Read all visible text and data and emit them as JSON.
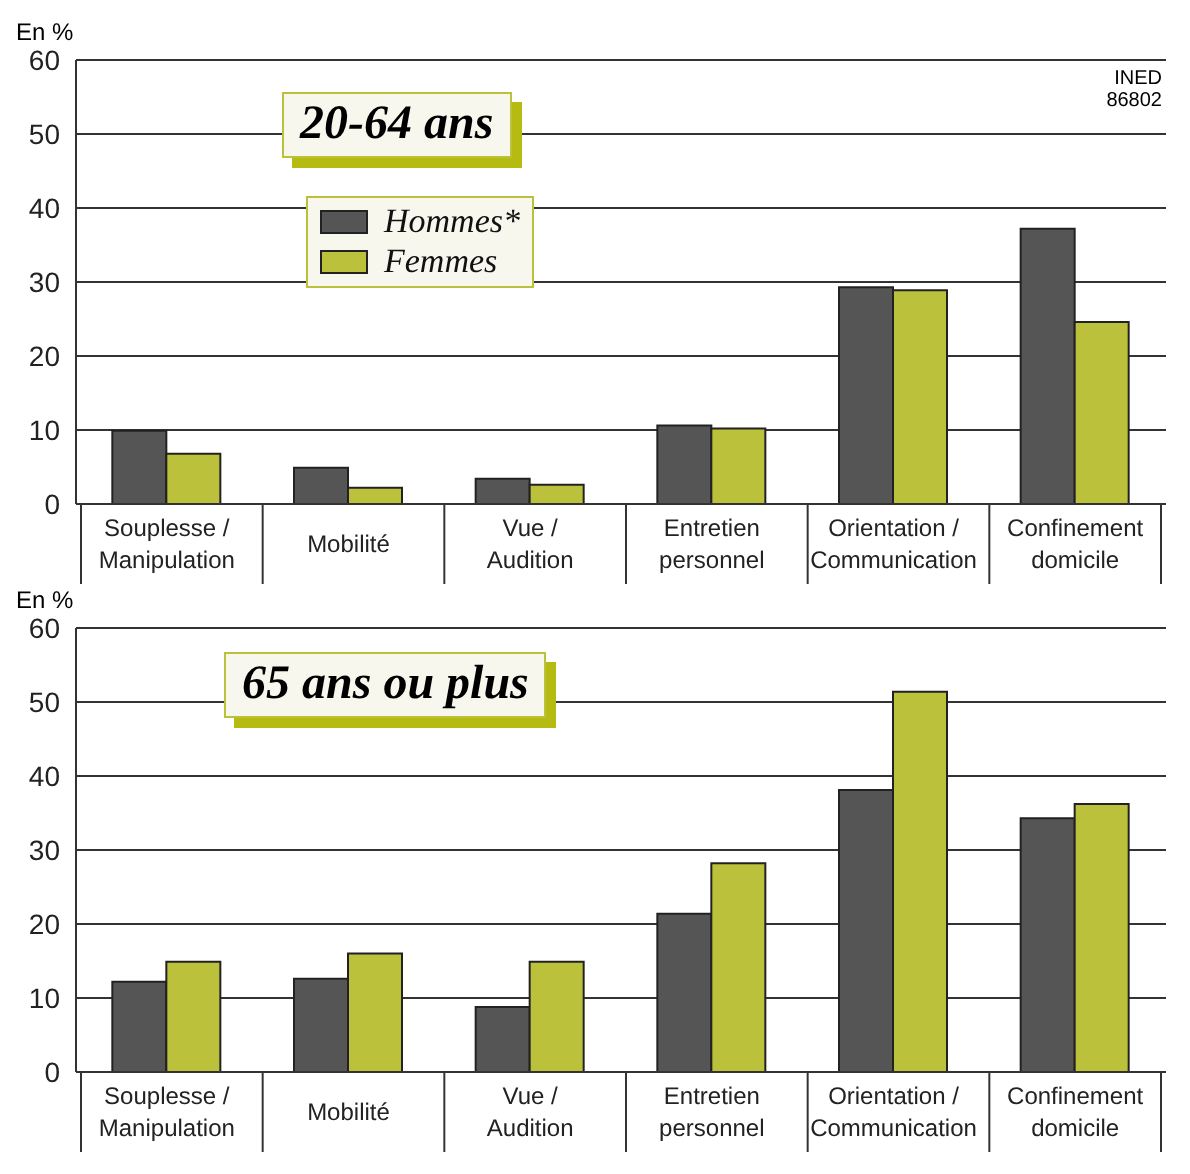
{
  "chart_data": [
    {
      "type": "bar",
      "title": "20-64 ans",
      "ylabel": "En %",
      "annotations": [
        "INED\n86802"
      ],
      "categories": [
        "Souplesse / Manipulation",
        "Mobilité",
        "Vue / Audition",
        "Entretien personnel",
        "Orientation / Communication",
        "Confinement domicile"
      ],
      "series": [
        {
          "name": "Hommes*",
          "color": "#555555",
          "values": [
            9.9,
            4.9,
            3.4,
            10.6,
            29.3,
            37.2
          ]
        },
        {
          "name": "Femmes",
          "color": "#bbc13a",
          "values": [
            6.8,
            2.2,
            2.6,
            10.2,
            28.9,
            24.6
          ]
        }
      ],
      "ylim": [
        0,
        60
      ],
      "yticks": [
        0,
        10,
        20,
        30,
        40,
        50,
        60
      ],
      "grid": "y",
      "legend": "top left"
    },
    {
      "type": "bar",
      "title": "65 ans ou plus",
      "ylabel": "En %",
      "categories": [
        "Souplesse / Manipulation",
        "Mobilité",
        "Vue / Audition",
        "Entretien personnel",
        "Orientation / Communication",
        "Confinement domicile"
      ],
      "series": [
        {
          "color": "#555555",
          "values": [
            12.2,
            12.6,
            8.8,
            21.4,
            38.1,
            34.3
          ]
        },
        {
          "color": "#bbc13a",
          "values": [
            14.9,
            16.0,
            14.9,
            28.2,
            51.4,
            36.2
          ]
        }
      ],
      "ylim": [
        0,
        60
      ],
      "yticks": [
        0,
        10,
        20,
        30,
        40,
        50,
        60
      ],
      "grid": "y",
      "legend": false
    }
  ]
}
